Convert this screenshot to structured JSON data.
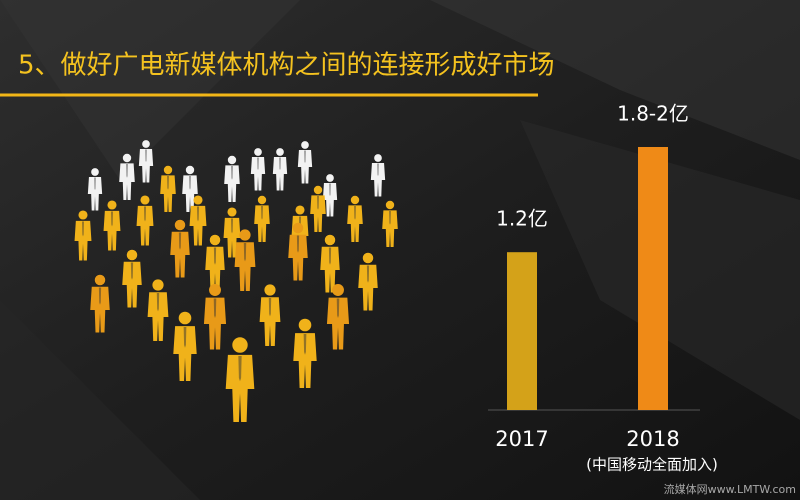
{
  "chart_data": {
    "type": "bar",
    "title": "5、做好广电新媒体机构之间的连接形成好市场",
    "categories": [
      "2017",
      "2018"
    ],
    "values": [
      1.2,
      2
    ],
    "value_labels": [
      "1.2亿",
      "1.8-2亿"
    ],
    "colors": [
      "#d4a219",
      "#ef8a17"
    ],
    "annotation": "(中国移动全面加入)",
    "watermark": "流媒体网www.LMTW.com"
  }
}
